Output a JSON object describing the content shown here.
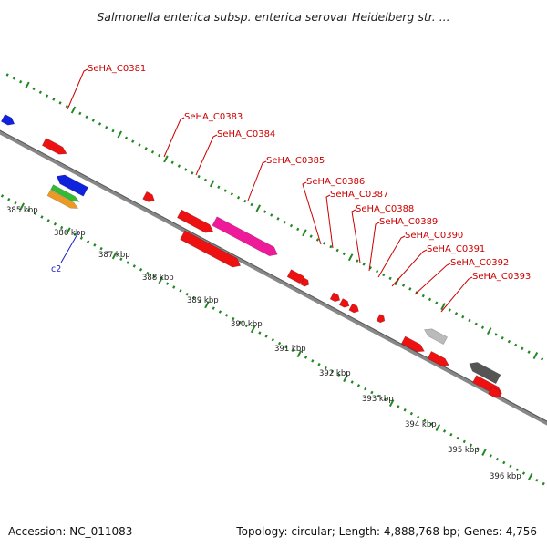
{
  "title": "Salmonella enterica subsp. enterica serovar Heidelberg str. ...",
  "gene_labels": [
    "SeHA_C0381",
    "SeHA_C0383",
    "SeHA_C0384",
    "SeHA_C0385",
    "SeHA_C0386",
    "SeHA_C0387",
    "SeHA_C0388",
    "SeHA_C0389",
    "SeHA_C0390",
    "SeHA_C0391",
    "SeHA_C0392",
    "SeHA_C0393"
  ],
  "kbp_labels": [
    "385 kbp",
    "386 kbp",
    "387 kbp",
    "388 kbp",
    "389 kbp",
    "390 kbp",
    "391 kbp",
    "392 kbp",
    "393 kbp",
    "394 kbp",
    "395 kbp",
    "396 kbp"
  ],
  "contig_label": "c2",
  "colors": {
    "gene": "#ee1111",
    "highlight": "#ee1a99",
    "blue": "#1122dd",
    "green": "#33bb33",
    "orange": "#ee9922",
    "light_gray": "#bbbbbb",
    "dark_gray": "#555555",
    "label": "#cc0000",
    "tick": "#228822",
    "backbone": "#888888"
  },
  "footer": {
    "accession": "Accession: NC_011083",
    "summary": "Topology: circular; Length: 4,888,768 bp; Genes: 4,756"
  }
}
